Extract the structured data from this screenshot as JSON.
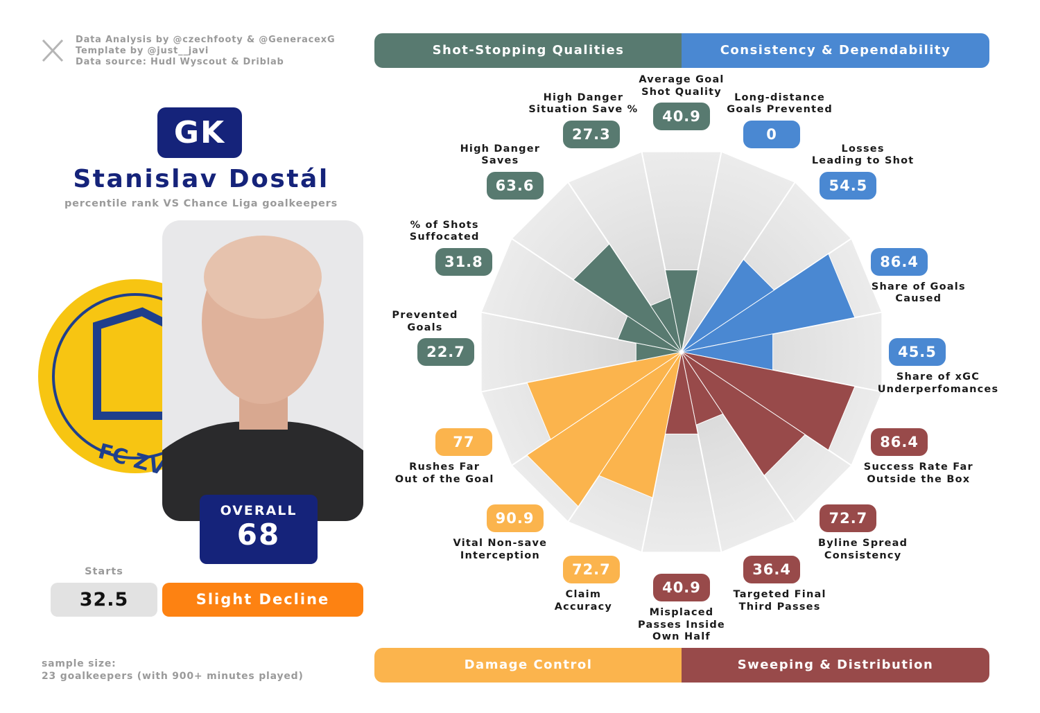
{
  "profile": {
    "credits": [
      "Data Analysis by @czechfooty & @GeneracexG",
      "Template by @just__javi",
      "Data source: Hudl Wyscout & Driblab"
    ],
    "position": "GK",
    "name": "Stanislav Dostál",
    "subtitle": "percentile rank VS Chance Liga goalkeepers",
    "club_logo_text": "FC ZV",
    "overall_label": "OVERALL",
    "overall": 68,
    "starts_label": "Starts",
    "starts": 32.5,
    "trend": "Slight Decline",
    "sample_size": [
      "sample size:",
      "23 goalkeepers (with 900+ minutes played)"
    ]
  },
  "chart_data": {
    "type": "pizza",
    "rlim": [
      0,
      100
    ],
    "groups": [
      {
        "name": "Shot-Stopping Qualities",
        "color": "#587a70"
      },
      {
        "name": "Consistency & Dependability",
        "color": "#4a88d2"
      },
      {
        "name": "Damage Control",
        "color": "#fbb44d"
      },
      {
        "name": "Sweeping & Distribution",
        "color": "#984a4a"
      }
    ],
    "categories": [
      "Average Goal\nShot Quality",
      "Long-distance\nGoals Prevented",
      "Losses\nLeading to Shot",
      "Share of Goals\nCaused",
      "Share of xGC\nUnderperfomances",
      "Success Rate Far\nOutside the Box",
      "Byline Spread\nConsistency",
      "Targeted Final\nThird Passes",
      "Misplaced\nPasses Inside\nOwn Half",
      "Claim\nAccuracy",
      "Vital Non-save\nInterception",
      "Rushes Far\nOut of the Goal",
      "Prevented\nGoals",
      "% of Shots\nSuffocated",
      "High Danger\nSaves",
      "High Danger\nSituation Save %"
    ],
    "values": [
      40.9,
      0,
      54.5,
      86.4,
      45.5,
      86.4,
      72.7,
      36.4,
      40.9,
      72.7,
      90.9,
      77,
      22.7,
      31.8,
      63.6,
      27.3
    ],
    "colors": [
      "#587a70",
      "#4a88d2",
      "#4a88d2",
      "#4a88d2",
      "#4a88d2",
      "#984a4a",
      "#984a4a",
      "#984a4a",
      "#984a4a",
      "#fbb44d",
      "#fbb44d",
      "#fbb44d",
      "#587a70",
      "#587a70",
      "#587a70",
      "#587a70"
    ]
  }
}
